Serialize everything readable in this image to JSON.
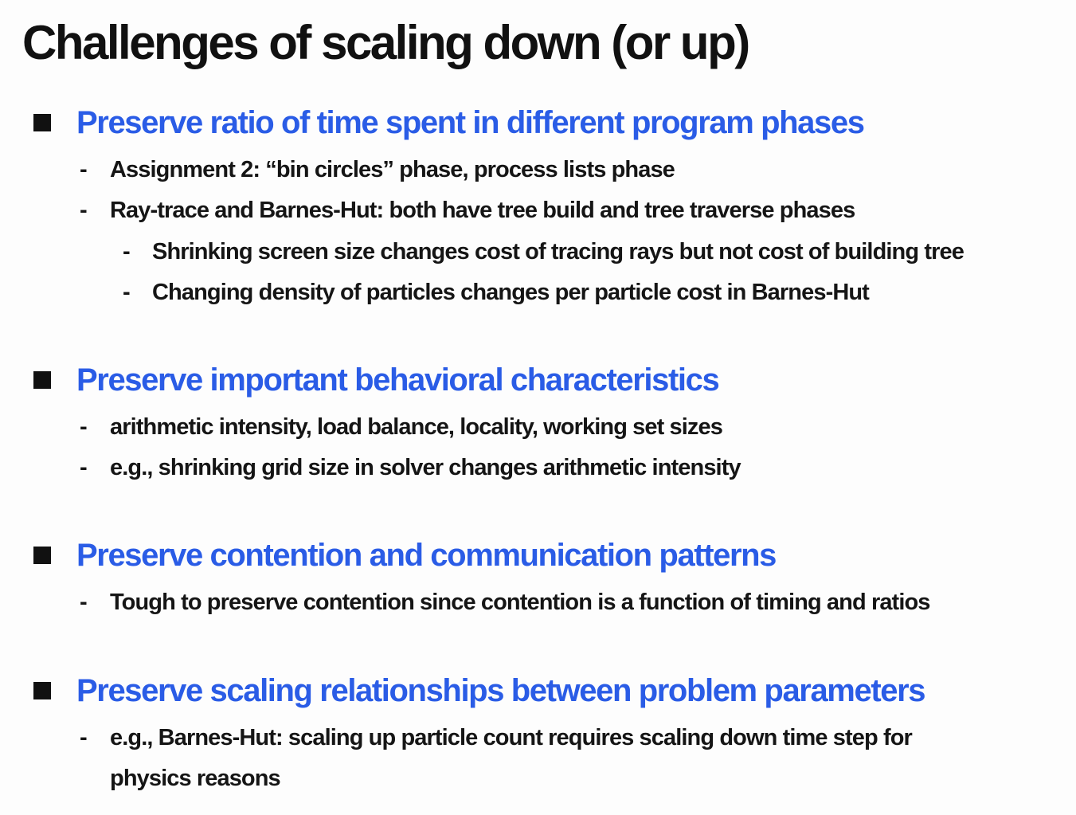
{
  "slide": {
    "title": "Challenges of scaling down (or up)",
    "sections": [
      {
        "heading": "Preserve ratio of time spent in different program phases",
        "items": [
          {
            "text": "Assignment 2: “bin circles” phase, process lists phase"
          },
          {
            "text": "Ray-trace and Barnes-Hut: both have tree build and tree traverse phases"
          },
          {
            "text": "Shrinking screen size changes cost of tracing rays but not cost of building tree"
          },
          {
            "text": "Changing density of particles changes per particle cost in Barnes-Hut"
          }
        ]
      },
      {
        "heading": "Preserve important behavioral characteristics",
        "items": [
          {
            "text": "arithmetic intensity, load balance, locality, working set sizes"
          },
          {
            "text": "e.g., shrinking grid size in solver changes arithmetic intensity"
          }
        ]
      },
      {
        "heading": "Preserve contention and communication patterns",
        "items": [
          {
            "text": "Tough to preserve contention since contention is a function of timing and ratios"
          }
        ]
      },
      {
        "heading": "Preserve scaling relationships between problem parameters",
        "items": [
          {
            "text": "e.g., Barnes-Hut: scaling up particle count requires scaling down time step for"
          },
          {
            "text": "physics reasons"
          }
        ]
      }
    ],
    "dash_glyph": "-"
  }
}
